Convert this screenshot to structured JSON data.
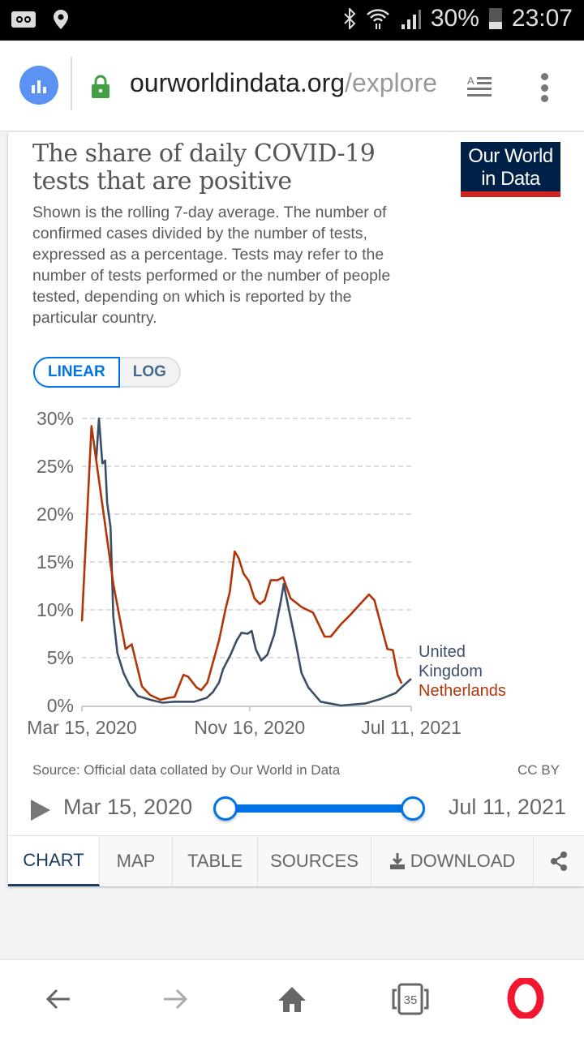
{
  "status_bar": {
    "battery": "30%",
    "time": "23:07",
    "icons": [
      "voicemail-icon",
      "location-pin-icon",
      "bluetooth-icon",
      "wifi-icon",
      "signal-icon",
      "battery-icon"
    ]
  },
  "browser": {
    "url_domain": "ourworldindata.org",
    "url_path": "/explore",
    "tabs_count": "35"
  },
  "card": {
    "title": "The share of daily COVID-19 tests that are positive",
    "subtitle": "Shown is the rolling 7-day average. The number of confirmed cases divided by the number of tests, expressed as a percentage. Tests may refer to the number of tests performed or the number of people tested, depending on which is reported by the particular country.",
    "logo_line1": "Our World",
    "logo_line2": "in Data",
    "scale_linear": "LINEAR",
    "scale_log": "LOG",
    "source": "Source: Official data collated by Our World in Data",
    "license": "CC BY",
    "timeline_start": "Mar 15, 2020",
    "timeline_end": "Jul 11, 2021",
    "tabs": [
      "CHART",
      "MAP",
      "TABLE",
      "SOURCES",
      "DOWNLOAD"
    ]
  },
  "colors": {
    "uk": "#3c4e66",
    "netherlands": "#b13507",
    "accent": "#0073e6",
    "logo_bg": "#002147",
    "logo_bar": "#ce261e"
  },
  "chart_data": {
    "type": "line",
    "title": "The share of daily COVID-19 tests that are positive",
    "xlabel": "",
    "ylabel": "",
    "x_unit": "days since Mar 15, 2020",
    "xlim": [
      0,
      483
    ],
    "ylim": [
      0,
      30
    ],
    "yticks": [
      0,
      5,
      10,
      15,
      20,
      25,
      30
    ],
    "ytick_labels": [
      "0%",
      "5%",
      "10%",
      "15%",
      "20%",
      "25%",
      "30%"
    ],
    "xticks": [
      0,
      246,
      483
    ],
    "xtick_labels": [
      "Mar 15, 2020",
      "Nov 16, 2020",
      "Jul 11, 2021"
    ],
    "grid": "horizontal dashed",
    "legend": "inline-right",
    "series": [
      {
        "name": "United Kingdom",
        "label_lines": [
          "United",
          "Kingdom"
        ],
        "color": "#3c4e66",
        "x": [
          21,
          25,
          30,
          34,
          37,
          42,
          46,
          52,
          61,
          70,
          82,
          100,
          118,
          136,
          165,
          183,
          192,
          201,
          207,
          218,
          227,
          234,
          243,
          249,
          255,
          263,
          272,
          282,
          292,
          296,
          303,
          313,
          322,
          332,
          350,
          380,
          415,
          439,
          460,
          472,
          483
        ],
        "y": [
          25.8,
          30.0,
          25.3,
          25.6,
          21.2,
          18.6,
          9.3,
          5.5,
          3.4,
          2.1,
          1.0,
          0.6,
          0.3,
          0.4,
          0.4,
          0.8,
          1.4,
          2.4,
          3.8,
          5.3,
          6.8,
          7.6,
          7.5,
          7.8,
          5.9,
          4.7,
          5.3,
          7.4,
          11.0,
          12.7,
          10.2,
          6.8,
          3.4,
          1.9,
          0.4,
          0.0,
          0.2,
          0.7,
          1.3,
          2.1,
          2.8
        ]
      },
      {
        "name": "Netherlands",
        "label_lines": [
          "Netherlands"
        ],
        "color": "#b13507",
        "x": [
          0,
          14,
          46,
          64,
          73,
          88,
          100,
          115,
          127,
          136,
          149,
          156,
          168,
          175,
          184,
          201,
          211,
          217,
          224,
          230,
          237,
          245,
          253,
          261,
          268,
          277,
          287,
          295,
          306,
          322,
          339,
          356,
          365,
          380,
          394,
          408,
          421,
          429,
          448,
          456,
          463,
          469
        ],
        "y": [
          8.8,
          29.2,
          12.7,
          5.9,
          6.4,
          2.0,
          1.1,
          0.6,
          0.8,
          0.9,
          3.2,
          3.0,
          1.9,
          1.6,
          2.4,
          6.8,
          10.2,
          11.9,
          16.1,
          15.4,
          13.8,
          13.0,
          11.2,
          10.6,
          11.0,
          13.1,
          13.1,
          13.4,
          11.2,
          10.3,
          9.7,
          7.2,
          7.2,
          8.5,
          9.5,
          10.6,
          11.6,
          11.0,
          5.9,
          5.8,
          3.2,
          2.3
        ]
      }
    ]
  }
}
